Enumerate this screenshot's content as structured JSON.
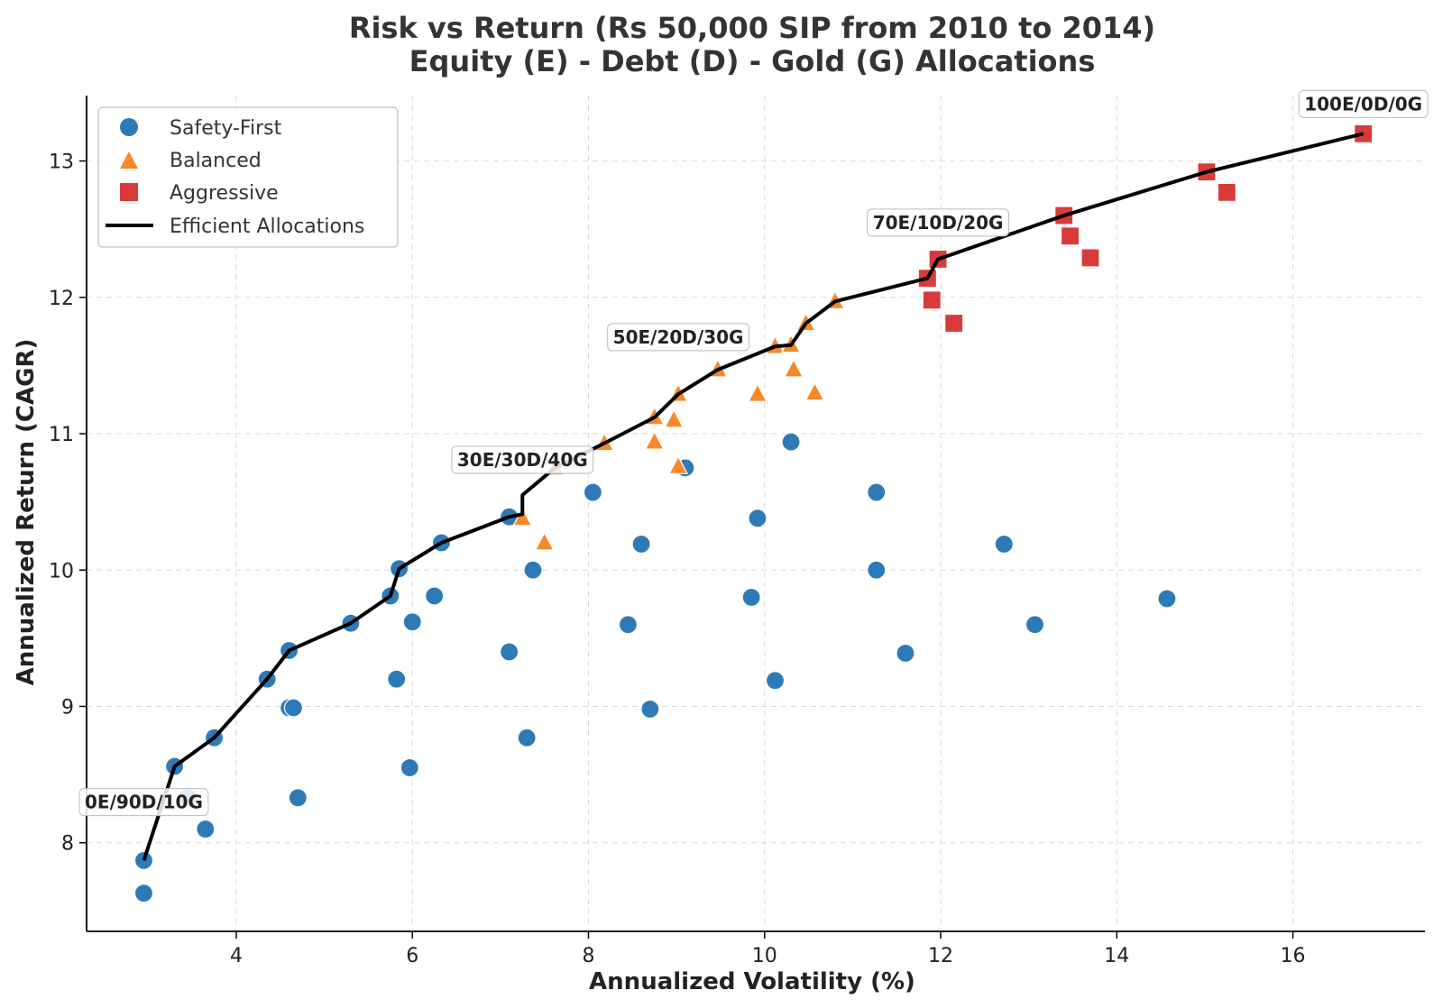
{
  "chart_data": {
    "type": "scatter",
    "title": "Risk vs Return (Rs 50,000 SIP from 2010 to 2014)",
    "subtitle": "Equity (E) - Debt (D) - Gold (G) Allocations",
    "xlabel": "Annualized Volatility (%)",
    "ylabel": "Annualized Return (CAGR)",
    "xlim": [
      2.3,
      17.5
    ],
    "ylim": [
      7.35,
      13.48
    ],
    "xticks": [
      4,
      6,
      8,
      10,
      12,
      14,
      16
    ],
    "yticks": [
      8,
      9,
      10,
      11,
      12,
      13
    ],
    "grid": true,
    "legend_position": "top-left",
    "colors": {
      "safety": "#2e7ab6",
      "balanced": "#f5892a",
      "aggressive": "#d93a3a",
      "line": "#000000",
      "grid": "#d9d9d9"
    },
    "series": [
      {
        "name": "Safety-First",
        "marker": "circle",
        "points": [
          [
            2.95,
            7.63
          ],
          [
            2.95,
            7.87
          ],
          [
            3.65,
            8.1
          ],
          [
            3.3,
            8.56
          ],
          [
            3.45,
            8.33
          ],
          [
            3.75,
            8.77
          ],
          [
            4.35,
            9.2
          ],
          [
            4.6,
            8.99
          ],
          [
            4.65,
            8.99
          ],
          [
            4.6,
            9.41
          ],
          [
            4.7,
            8.33
          ],
          [
            5.3,
            9.61
          ],
          [
            5.75,
            9.81
          ],
          [
            5.85,
            10.01
          ],
          [
            5.82,
            9.2
          ],
          [
            6.0,
            9.62
          ],
          [
            5.97,
            8.55
          ],
          [
            6.25,
            9.81
          ],
          [
            6.33,
            10.2
          ],
          [
            7.1,
            10.39
          ],
          [
            7.1,
            9.4
          ],
          [
            7.3,
            8.77
          ],
          [
            7.37,
            10.0
          ],
          [
            8.05,
            10.57
          ],
          [
            8.45,
            9.6
          ],
          [
            8.6,
            10.19
          ],
          [
            8.7,
            8.98
          ],
          [
            9.1,
            10.75
          ],
          [
            9.85,
            9.8
          ],
          [
            9.92,
            10.38
          ],
          [
            10.12,
            9.19
          ],
          [
            10.3,
            10.94
          ],
          [
            11.27,
            10.57
          ],
          [
            11.27,
            10.0
          ],
          [
            11.6,
            9.39
          ],
          [
            12.72,
            10.19
          ],
          [
            13.07,
            9.6
          ],
          [
            14.57,
            9.79
          ]
        ]
      },
      {
        "name": "Balanced",
        "marker": "triangle",
        "points": [
          [
            7.25,
            10.38
          ],
          [
            7.5,
            10.2
          ],
          [
            7.62,
            10.75
          ],
          [
            8.18,
            10.93
          ],
          [
            8.75,
            11.12
          ],
          [
            8.75,
            10.94
          ],
          [
            8.97,
            11.1
          ],
          [
            9.02,
            11.29
          ],
          [
            9.02,
            10.76
          ],
          [
            9.47,
            11.47
          ],
          [
            9.92,
            11.29
          ],
          [
            10.12,
            11.64
          ],
          [
            10.3,
            11.65
          ],
          [
            10.33,
            11.47
          ],
          [
            10.47,
            11.81
          ],
          [
            10.57,
            11.3
          ],
          [
            10.8,
            11.97
          ]
        ]
      },
      {
        "name": "Aggressive",
        "marker": "square",
        "points": [
          [
            11.85,
            12.14
          ],
          [
            11.9,
            11.98
          ],
          [
            11.97,
            12.28
          ],
          [
            12.15,
            11.81
          ],
          [
            13.4,
            12.6
          ],
          [
            13.47,
            12.45
          ],
          [
            13.7,
            12.29
          ],
          [
            15.02,
            12.92
          ],
          [
            15.25,
            12.77
          ],
          [
            16.8,
            13.2
          ]
        ]
      },
      {
        "name": "Efficient Allocations",
        "marker": "line",
        "points": [
          [
            2.95,
            7.87
          ],
          [
            3.3,
            8.56
          ],
          [
            3.75,
            8.77
          ],
          [
            4.35,
            9.2
          ],
          [
            4.6,
            9.41
          ],
          [
            5.3,
            9.61
          ],
          [
            5.75,
            9.81
          ],
          [
            5.85,
            10.01
          ],
          [
            6.33,
            10.2
          ],
          [
            7.1,
            10.39
          ],
          [
            7.25,
            10.41
          ],
          [
            7.25,
            10.55
          ],
          [
            7.62,
            10.75
          ],
          [
            8.18,
            10.93
          ],
          [
            8.75,
            11.12
          ],
          [
            9.02,
            11.29
          ],
          [
            9.47,
            11.47
          ],
          [
            10.12,
            11.64
          ],
          [
            10.3,
            11.65
          ],
          [
            10.47,
            11.81
          ],
          [
            10.8,
            11.97
          ],
          [
            11.85,
            12.14
          ],
          [
            11.97,
            12.28
          ],
          [
            13.4,
            12.6
          ],
          [
            15.02,
            12.92
          ],
          [
            16.8,
            13.2
          ]
        ]
      }
    ],
    "annotations": [
      {
        "text": "0E/90D/10G",
        "x": 2.95,
        "y": 8.08
      },
      {
        "text": "30E/30D/40G",
        "x": 7.25,
        "y": 10.59
      },
      {
        "text": "50E/20D/30G",
        "x": 9.02,
        "y": 11.49
      },
      {
        "text": "70E/10D/20G",
        "x": 11.97,
        "y": 12.33
      },
      {
        "text": "100E/0D/0G",
        "x": 16.8,
        "y": 13.2
      }
    ]
  }
}
